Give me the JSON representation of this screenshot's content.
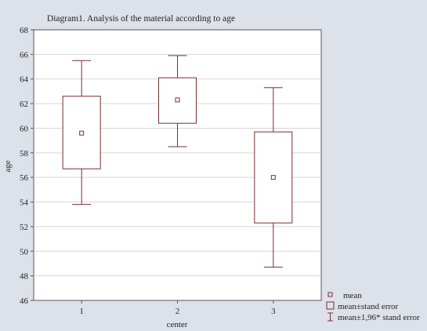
{
  "chart_data": {
    "type": "box",
    "title": "Diagram1. Analysis of the material according to age",
    "xlabel": "center",
    "ylabel": "age",
    "ylim": [
      46,
      68
    ],
    "yticks": [
      "46",
      "48",
      "50",
      "52",
      "54",
      "56",
      "58",
      "60",
      "62",
      "64",
      "66",
      "68"
    ],
    "categories": [
      "1",
      "2",
      "3"
    ],
    "groups": [
      {
        "category": "1",
        "mean": 59.6,
        "se_low": 56.7,
        "se_high": 62.6,
        "ci_low": 53.8,
        "ci_high": 65.5
      },
      {
        "category": "2",
        "mean": 62.3,
        "se_low": 60.4,
        "se_high": 64.1,
        "ci_low": 58.5,
        "ci_high": 65.9
      },
      {
        "category": "3",
        "mean": 56.0,
        "se_low": 52.3,
        "se_high": 59.7,
        "ci_low": 48.7,
        "ci_high": 63.3
      }
    ],
    "grid": true,
    "legend_position": "bottom-right",
    "legend": [
      "mean",
      "mean±stand error",
      "mean±1,96* stand error"
    ],
    "colors": {
      "series": "#7a2e2e",
      "plot_bg": "#ffffff",
      "page_bg": "#dde2ea",
      "grid": "#d7d7d7",
      "frame": "#555555"
    }
  }
}
